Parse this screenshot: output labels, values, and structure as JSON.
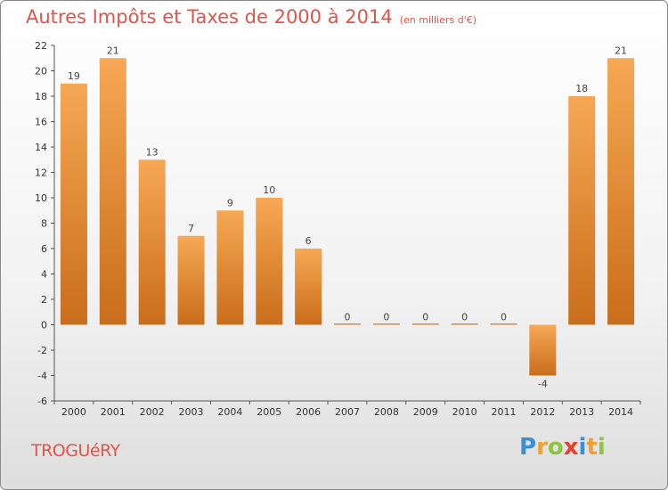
{
  "title": "Autres Impôts et Taxes de 2000 à 2014",
  "subtitle": "(en milliers d'€)",
  "commune": "TROGUéRY",
  "logo": {
    "letters": [
      "P",
      "r",
      "o",
      "x",
      "i",
      "t",
      "i"
    ],
    "colors": [
      "#3a8fd8",
      "#f0a030",
      "#8cc63f",
      "#e8402a",
      "#3a8fd8",
      "#f0a030",
      "#8cc63f"
    ]
  },
  "chart_data": {
    "type": "bar",
    "title": "Autres Impôts et Taxes de 2000 à 2014",
    "subtitle": "(en milliers d'€)",
    "categories": [
      "2000",
      "2001",
      "2002",
      "2003",
      "2004",
      "2005",
      "2006",
      "2007",
      "2008",
      "2009",
      "2010",
      "2011",
      "2012",
      "2013",
      "2014"
    ],
    "values": [
      19,
      21,
      13,
      7,
      9,
      10,
      6,
      0,
      0,
      0,
      0,
      0,
      -4,
      18,
      21
    ],
    "value_labels": [
      "19",
      "21",
      "13",
      "7",
      "9",
      "10",
      "6",
      "0",
      "0",
      "0",
      "0",
      "0",
      "-4",
      "18",
      "21"
    ],
    "ylim": [
      -6,
      22
    ],
    "yticks": [
      -6,
      -4,
      -2,
      0,
      2,
      4,
      6,
      8,
      10,
      12,
      14,
      16,
      18,
      20,
      22
    ],
    "ytick_labels": [
      "-6",
      "-4",
      "-2",
      "0",
      "2",
      "4",
      "6",
      "8",
      "10",
      "12",
      "14",
      "16",
      "18",
      "20",
      "22"
    ],
    "grid": false,
    "bar_color_light": "#f7a854",
    "bar_color_dark": "#c86d1c"
  }
}
